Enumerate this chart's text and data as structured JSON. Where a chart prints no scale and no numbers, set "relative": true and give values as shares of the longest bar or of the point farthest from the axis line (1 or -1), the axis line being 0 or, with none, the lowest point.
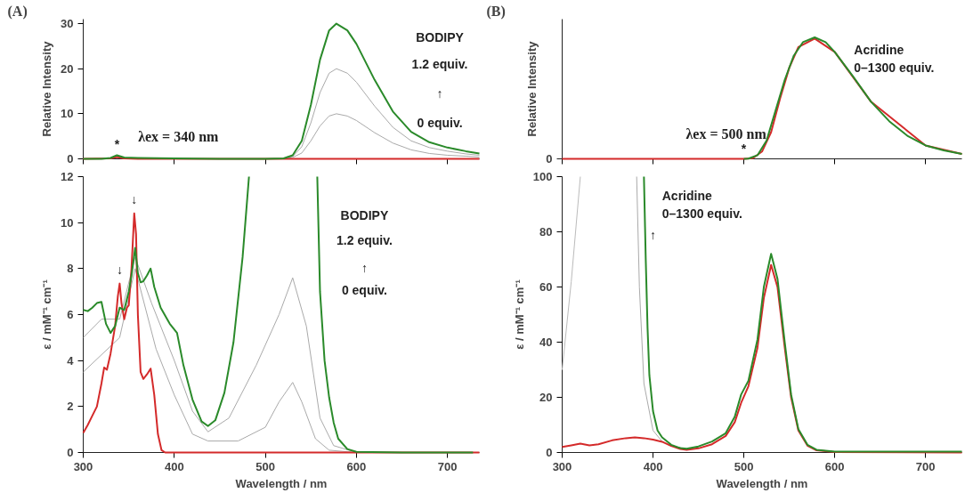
{
  "chart_data": [
    {
      "type": "line",
      "ylabel": "Relative Intensity",
      "xlim": [
        300,
        735
      ],
      "xticks": [
        300,
        400,
        500,
        600,
        700
      ],
      "ylim": [
        0,
        31
      ],
      "yticks": [
        0,
        10,
        20,
        30
      ],
      "tick_labels": "y",
      "annotations": [
        "(A)",
        "BODIPY",
        "1.2 equiv.",
        "↑",
        "0 equiv.",
        "λex = 340 nm",
        {
          "text": "*",
          "x": 337,
          "y": 0.8
        }
      ],
      "series": [
        {
          "color": "#aaaaaa",
          "x": [
            300,
            330,
            337,
            345,
            400,
            500,
            520,
            530,
            540,
            550,
            560,
            570,
            578,
            590,
            600,
            620,
            640,
            660,
            680,
            700,
            720,
            735
          ],
          "values": [
            0,
            0.1,
            0.4,
            0.1,
            0,
            0,
            0,
            0.3,
            1.3,
            4,
            7.3,
            9.5,
            10,
            9.5,
            8.5,
            5.8,
            3.5,
            2,
            1.2,
            0.8,
            0.6,
            0.4
          ]
        },
        {
          "color": "#aaaaaa",
          "x": [
            300,
            330,
            337,
            345,
            400,
            500,
            520,
            530,
            540,
            550,
            560,
            570,
            578,
            590,
            600,
            620,
            640,
            660,
            680,
            700,
            720,
            735
          ],
          "values": [
            0,
            0.1,
            0.6,
            0.2,
            0,
            0,
            0.1,
            0.5,
            2.7,
            8,
            14.7,
            19,
            20,
            19,
            17,
            11.7,
            7,
            4,
            2.5,
            1.7,
            1.1,
            0.8
          ]
        },
        {
          "color": "#d42a2a",
          "x": [
            300,
            330,
            337,
            345,
            360,
            735
          ],
          "values": [
            0,
            0.1,
            0.4,
            0.1,
            0,
            0
          ]
        },
        {
          "color": "#2a8a2a",
          "x": [
            300,
            320,
            330,
            337,
            345,
            360,
            400,
            450,
            500,
            520,
            530,
            540,
            550,
            560,
            570,
            578,
            590,
            600,
            620,
            640,
            660,
            680,
            700,
            720,
            735
          ],
          "values": [
            0,
            0,
            0.2,
            0.8,
            0.3,
            0.2,
            0.1,
            0,
            0,
            0.1,
            0.8,
            4,
            12,
            22,
            28.5,
            30,
            28.5,
            25.5,
            17.5,
            10.5,
            6,
            3.7,
            2.5,
            1.7,
            1.2
          ]
        }
      ]
    },
    {
      "type": "line",
      "xlabel": "Wavelength / nm",
      "ylabel": "ε / mM⁻¹ cm⁻¹",
      "xlim": [
        300,
        735
      ],
      "xticks": [
        300,
        400,
        500,
        600,
        700
      ],
      "ylim": [
        0,
        12
      ],
      "yticks": [
        0,
        2,
        4,
        6,
        8,
        10,
        12
      ],
      "annotations": [
        "BODIPY",
        "1.2 equiv.",
        "↑",
        "0 equiv.",
        {
          "text": "↓",
          "x": 340,
          "y": 7.35
        },
        {
          "text": "↓",
          "x": 356,
          "y": 10.4
        }
      ],
      "series": [
        {
          "color": "#aaaaaa",
          "x": [
            300,
            340,
            357,
            380,
            400,
            420,
            437,
            470,
            500,
            515,
            530,
            540,
            555,
            570,
            600,
            735
          ],
          "values": [
            3.5,
            5,
            8,
            4.5,
            2.5,
            0.8,
            0.5,
            0.5,
            1.1,
            2.2,
            3.05,
            2.2,
            0.6,
            0.1,
            0,
            0
          ]
        },
        {
          "color": "#aaaaaa",
          "x": [
            300,
            320,
            340,
            357,
            375,
            400,
            420,
            437,
            460,
            490,
            515,
            530,
            545,
            560,
            575,
            600,
            735
          ],
          "values": [
            5,
            5.8,
            5.8,
            8.5,
            6.5,
            4,
            1.8,
            0.9,
            1.5,
            3.8,
            6,
            7.6,
            5.5,
            1.5,
            0.3,
            0,
            0
          ]
        },
        {
          "color": "#d42a2a",
          "x": [
            300,
            305,
            310,
            315,
            320,
            323,
            326,
            330,
            335,
            338,
            340,
            342,
            345,
            348,
            350,
            353,
            356,
            358,
            360,
            363,
            366,
            370,
            374,
            378,
            382,
            386,
            390,
            500,
            735
          ],
          "values": [
            0.85,
            1.2,
            1.6,
            2.0,
            3.0,
            3.7,
            3.6,
            4.3,
            5.5,
            6.8,
            7.35,
            6.5,
            5.8,
            6.3,
            6.4,
            8.0,
            10.4,
            9.5,
            6,
            3.5,
            3.2,
            3.4,
            3.65,
            2.5,
            0.8,
            0.1,
            0,
            0,
            0
          ]
        },
        {
          "color": "#2a8a2a",
          "x": [
            300,
            305,
            310,
            315,
            320,
            325,
            330,
            335,
            340,
            345,
            350,
            353,
            357,
            360,
            363,
            366,
            370,
            374,
            378,
            385,
            395,
            403,
            410,
            420,
            430,
            437,
            445,
            455,
            465,
            475,
            482,
            520,
            557,
            560,
            565,
            570,
            575,
            580,
            590,
            600,
            650,
            728
          ],
          "values": [
            6.2,
            6.15,
            6.3,
            6.5,
            6.55,
            5.6,
            5.2,
            5.5,
            6.3,
            6.2,
            7.0,
            7.7,
            8.9,
            7.8,
            7.4,
            7.45,
            7.7,
            8.0,
            7.2,
            6.3,
            5.6,
            5.2,
            3.8,
            2.3,
            1.35,
            1.15,
            1.4,
            2.6,
            4.8,
            8.5,
            12,
            null,
            12,
            7,
            4,
            2.4,
            1.3,
            0.6,
            0.15,
            0.03,
            0,
            0
          ]
        }
      ]
    },
    {
      "type": "line",
      "ylabel": "Relative Intensity",
      "xlim": [
        300,
        740
      ],
      "xticks": [
        300,
        400,
        500,
        600,
        700
      ],
      "relative": true,
      "tick_labels": false,
      "annotations": [
        "(B)",
        "Acridine",
        "0–1300 equiv.",
        "λex = 500 nm",
        {
          "text": "*",
          "x": 500,
          "y": 0
        },
        "0"
      ],
      "series": [
        {
          "color": "#d42a2a",
          "x": [
            300,
            500,
            510,
            520,
            530,
            540,
            550,
            560,
            578,
            600,
            640,
            700,
            740
          ],
          "values": [
            0,
            0,
            0.005,
            0.06,
            0.22,
            0.5,
            0.75,
            0.92,
            0.99,
            0.88,
            0.47,
            0.11,
            0.04
          ]
        },
        {
          "color": "#2a8a2a",
          "x": [
            500,
            505,
            515,
            525,
            535,
            545,
            555,
            565,
            578,
            590,
            600,
            620,
            640,
            660,
            680,
            700,
            720,
            740
          ],
          "values": [
            0,
            0.002,
            0.03,
            0.15,
            0.4,
            0.65,
            0.85,
            0.96,
            1,
            0.96,
            0.88,
            0.68,
            0.47,
            0.31,
            0.19,
            0.11,
            0.07,
            0.04
          ]
        }
      ]
    },
    {
      "type": "line",
      "xlabel": "Wavelength / nm",
      "ylabel": "ε / mM⁻¹ cm⁻¹",
      "xlim": [
        300,
        740
      ],
      "xticks": [
        300,
        400,
        500,
        600,
        700
      ],
      "ylim": [
        0,
        100
      ],
      "yticks": [
        0,
        20,
        40,
        60,
        80,
        100
      ],
      "annotations": [
        "Acridine",
        "0–1300 equiv.",
        "↑"
      ],
      "series": [
        {
          "color": "#bbbbbb",
          "x": [
            300,
            310,
            320
          ],
          "values": [
            30,
            62,
            100
          ]
        },
        {
          "color": "#aaaaaa",
          "x": [
            382,
            385,
            390,
            400,
            410,
            420,
            437
          ],
          "values": [
            100,
            60,
            25,
            8,
            4,
            2.4,
            1.3
          ]
        },
        {
          "color": "#d42a2a",
          "x": [
            300,
            310,
            320,
            330,
            340,
            355,
            370,
            380,
            390,
            400,
            410,
            420,
            430,
            437,
            450,
            465,
            480,
            490,
            497,
            505,
            515,
            522,
            530,
            537,
            545,
            552,
            560,
            570,
            580,
            600,
            740
          ],
          "values": [
            2,
            2.6,
            3.2,
            2.6,
            3,
            4.4,
            5.2,
            5.5,
            5.2,
            4.7,
            3.9,
            2.4,
            1.3,
            1.0,
            1.5,
            3,
            6,
            11,
            18,
            24,
            38,
            56,
            68,
            60,
            38,
            20,
            8,
            2.5,
            0.8,
            0.2,
            0
          ]
        },
        {
          "color": "#2a8a2a",
          "x": [
            390,
            392,
            394,
            396,
            400,
            405,
            410,
            420,
            430,
            437,
            450,
            465,
            480,
            490,
            497,
            505,
            515,
            522,
            530,
            537,
            545,
            552,
            560,
            570,
            580,
            600,
            740
          ],
          "values": [
            100,
            70,
            45,
            28,
            15,
            8,
            5.5,
            2.8,
            1.6,
            1.4,
            2.2,
            4,
            7,
            13,
            21,
            26,
            41,
            60,
            72,
            63,
            40,
            21,
            8.5,
            2.8,
            1,
            0.3,
            0.3
          ]
        }
      ]
    }
  ]
}
